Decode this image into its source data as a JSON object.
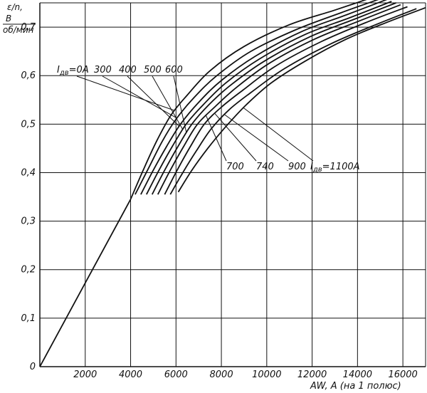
{
  "chart_data": {
    "type": "line",
    "ylabel_top": "ε/n,",
    "ylabel_num": "В",
    "ylabel_den": "об/мин",
    "xlabel": "AW, A (на 1 полюс)",
    "xlim": [
      0,
      17000
    ],
    "ylim": [
      0,
      0.75
    ],
    "grid": true,
    "x_ticks": [
      2000,
      4000,
      6000,
      8000,
      10000,
      12000,
      14000,
      16000
    ],
    "x_tick_labels": [
      "2000",
      "4000",
      "6000",
      "8000",
      "10000",
      "12000",
      "14000",
      "16000"
    ],
    "y_ticks": [
      0,
      0.1,
      0.2,
      0.3,
      0.4,
      0.5,
      0.6,
      0.7
    ],
    "y_tick_labels": [
      "0",
      "0,1",
      "0,2",
      "0,3",
      "0,4",
      "0,5",
      "0,6",
      "0,7"
    ],
    "common_segment": [
      [
        0,
        0
      ],
      [
        4000,
        0.345
      ]
    ],
    "series": [
      {
        "name": "I_дв=0A",
        "points": [
          [
            4000,
            0.345
          ],
          [
            4600,
            0.41
          ],
          [
            5200,
            0.47
          ],
          [
            5800,
            0.52
          ],
          [
            6500,
            0.56
          ],
          [
            7500,
            0.61
          ],
          [
            9000,
            0.66
          ],
          [
            11000,
            0.705
          ],
          [
            13000,
            0.735
          ],
          [
            14900,
            0.765
          ]
        ]
      },
      {
        "name": "300",
        "points": [
          [
            4200,
            0.355
          ],
          [
            4800,
            0.41
          ],
          [
            5400,
            0.465
          ],
          [
            6000,
            0.51
          ],
          [
            6800,
            0.555
          ],
          [
            7800,
            0.6
          ],
          [
            9300,
            0.65
          ],
          [
            11300,
            0.695
          ],
          [
            13300,
            0.73
          ],
          [
            15100,
            0.76
          ]
        ]
      },
      {
        "name": "400",
        "points": [
          [
            4450,
            0.355
          ],
          [
            5000,
            0.405
          ],
          [
            5600,
            0.455
          ],
          [
            6200,
            0.5
          ],
          [
            7000,
            0.545
          ],
          [
            8000,
            0.59
          ],
          [
            9500,
            0.64
          ],
          [
            11500,
            0.69
          ],
          [
            13500,
            0.725
          ],
          [
            15300,
            0.757
          ]
        ]
      },
      {
        "name": "500",
        "points": [
          [
            4700,
            0.355
          ],
          [
            5250,
            0.405
          ],
          [
            5850,
            0.455
          ],
          [
            6450,
            0.5
          ],
          [
            7200,
            0.54
          ],
          [
            8200,
            0.585
          ],
          [
            9700,
            0.635
          ],
          [
            11700,
            0.685
          ],
          [
            13700,
            0.72
          ],
          [
            15500,
            0.753
          ]
        ]
      },
      {
        "name": "600",
        "points": [
          [
            4950,
            0.355
          ],
          [
            5500,
            0.405
          ],
          [
            6100,
            0.455
          ],
          [
            6700,
            0.5
          ],
          [
            7450,
            0.54
          ],
          [
            8400,
            0.58
          ],
          [
            9900,
            0.63
          ],
          [
            11900,
            0.68
          ],
          [
            13900,
            0.717
          ],
          [
            15700,
            0.75
          ]
        ]
      },
      {
        "name": "700",
        "points": [
          [
            5200,
            0.355
          ],
          [
            5750,
            0.405
          ],
          [
            6350,
            0.455
          ],
          [
            6950,
            0.5
          ],
          [
            7700,
            0.535
          ],
          [
            8650,
            0.575
          ],
          [
            10100,
            0.625
          ],
          [
            12100,
            0.675
          ],
          [
            14100,
            0.713
          ],
          [
            15900,
            0.746
          ]
        ]
      },
      {
        "name": "740",
        "points": [
          [
            5500,
            0.355
          ],
          [
            6050,
            0.405
          ],
          [
            6650,
            0.455
          ],
          [
            7250,
            0.5
          ],
          [
            8000,
            0.535
          ],
          [
            8950,
            0.57
          ],
          [
            10400,
            0.62
          ],
          [
            12400,
            0.67
          ],
          [
            14400,
            0.71
          ],
          [
            16200,
            0.742
          ]
        ]
      },
      {
        "name": "900",
        "points": [
          [
            5750,
            0.355
          ],
          [
            6300,
            0.4
          ],
          [
            6900,
            0.445
          ],
          [
            7550,
            0.49
          ],
          [
            8350,
            0.53
          ],
          [
            9300,
            0.565
          ],
          [
            10800,
            0.615
          ],
          [
            12800,
            0.665
          ],
          [
            14800,
            0.705
          ],
          [
            16600,
            0.738
          ]
        ]
      },
      {
        "name": "I_дв=1100A",
        "points": [
          [
            6100,
            0.36
          ],
          [
            6700,
            0.405
          ],
          [
            7400,
            0.45
          ],
          [
            8200,
            0.495
          ],
          [
            9100,
            0.54
          ],
          [
            10200,
            0.585
          ],
          [
            11700,
            0.63
          ],
          [
            13500,
            0.675
          ],
          [
            15300,
            0.71
          ],
          [
            17000,
            0.74
          ]
        ]
      }
    ],
    "annotations": {
      "top": [
        {
          "prefix": "I",
          "sub": "дв",
          "text": "=0A",
          "series": 0
        },
        {
          "text": "300",
          "series": 1
        },
        {
          "text": "400",
          "series": 2
        },
        {
          "text": "500",
          "series": 3
        },
        {
          "text": "600",
          "series": 4
        }
      ],
      "bottom": [
        {
          "text": "700",
          "series": 5
        },
        {
          "text": "740",
          "series": 6
        },
        {
          "text": "900",
          "series": 7
        },
        {
          "prefix": "I",
          "sub": "дв",
          "text": "=1100A",
          "series": 8
        }
      ]
    }
  }
}
